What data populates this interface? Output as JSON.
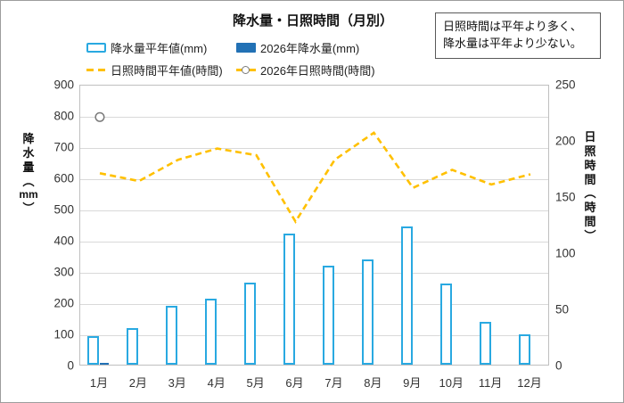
{
  "title": "降水量・日照時間（月別）",
  "legend": {
    "items": [
      {
        "label": "降水量平年値(mm)",
        "swatch": "outlined-bar"
      },
      {
        "label": "2026年降水量(mm)",
        "swatch": "solid-bar"
      },
      {
        "label": "日照時間平年値(時間)",
        "swatch": "dashed-line"
      },
      {
        "label": "2026年日照時間(時間)",
        "swatch": "line-with-circle-marker"
      }
    ]
  },
  "annotation": {
    "line1": "日照時間は平年より多く、",
    "line2": "降水量は平年より少ない。"
  },
  "colors": {
    "bar_outline": "#29A9E1",
    "bar_solid": "#2271B5",
    "line_yellow": "#FFC000",
    "marker_stroke": "#7a7a7a",
    "gridline": "#D9D9D9",
    "plot_border": "#BFBFBF"
  },
  "chart_data": {
    "type": "bar",
    "subtype": "combo-bar-line-dual-axis",
    "title": "降水量・日照時間（月別）",
    "categories": [
      "1月",
      "2月",
      "3月",
      "4月",
      "5月",
      "6月",
      "7月",
      "8月",
      "9月",
      "10月",
      "11月",
      "12月"
    ],
    "left_axis": {
      "title_chars": [
        "降",
        "水",
        "量",
        "︵",
        "mm",
        "︶"
      ],
      "title_text": "降水量（mm）",
      "min": 0,
      "max": 900,
      "step": 100,
      "ticks": [
        "900",
        "800",
        "700",
        "600",
        "500",
        "400",
        "300",
        "200",
        "100",
        "0"
      ]
    },
    "right_axis": {
      "title_chars": [
        "日",
        "照",
        "時",
        "間",
        "︵",
        "時",
        "間",
        "︶"
      ],
      "title_text": "日照時間（時間）",
      "min": 0,
      "max": 250,
      "step": 50,
      "ticks": [
        "250",
        "200",
        "150",
        "100",
        "50",
        "0"
      ]
    },
    "grid": true,
    "legend_position": "top",
    "series": [
      {
        "name": "降水量平年値(mm)",
        "type": "bar",
        "style": "outline",
        "axis": "left",
        "color": "#29A9E1",
        "values": [
          92,
          118,
          190,
          212,
          263,
          420,
          318,
          338,
          443,
          261,
          136,
          97
        ]
      },
      {
        "name": "2026年降水量(mm)",
        "type": "bar",
        "style": "solid",
        "axis": "left",
        "color": "#2271B5",
        "values": [
          5,
          null,
          null,
          null,
          null,
          null,
          null,
          null,
          null,
          null,
          null,
          null
        ]
      },
      {
        "name": "日照時間平年値(時間)",
        "type": "line",
        "style": "dashed",
        "axis": "right",
        "color": "#FFC000",
        "values": [
          172,
          165,
          184,
          194,
          188,
          129,
          184,
          208,
          159,
          175,
          162,
          171
        ]
      },
      {
        "name": "2026年日照時間(時間)",
        "type": "line",
        "style": "circle-marker",
        "axis": "right",
        "color": "#FFC000",
        "marker_fill": "#ffffff",
        "marker_stroke": "#7a7a7a",
        "values": [
          222,
          null,
          null,
          null,
          null,
          null,
          null,
          null,
          null,
          null,
          null,
          null
        ]
      }
    ]
  }
}
